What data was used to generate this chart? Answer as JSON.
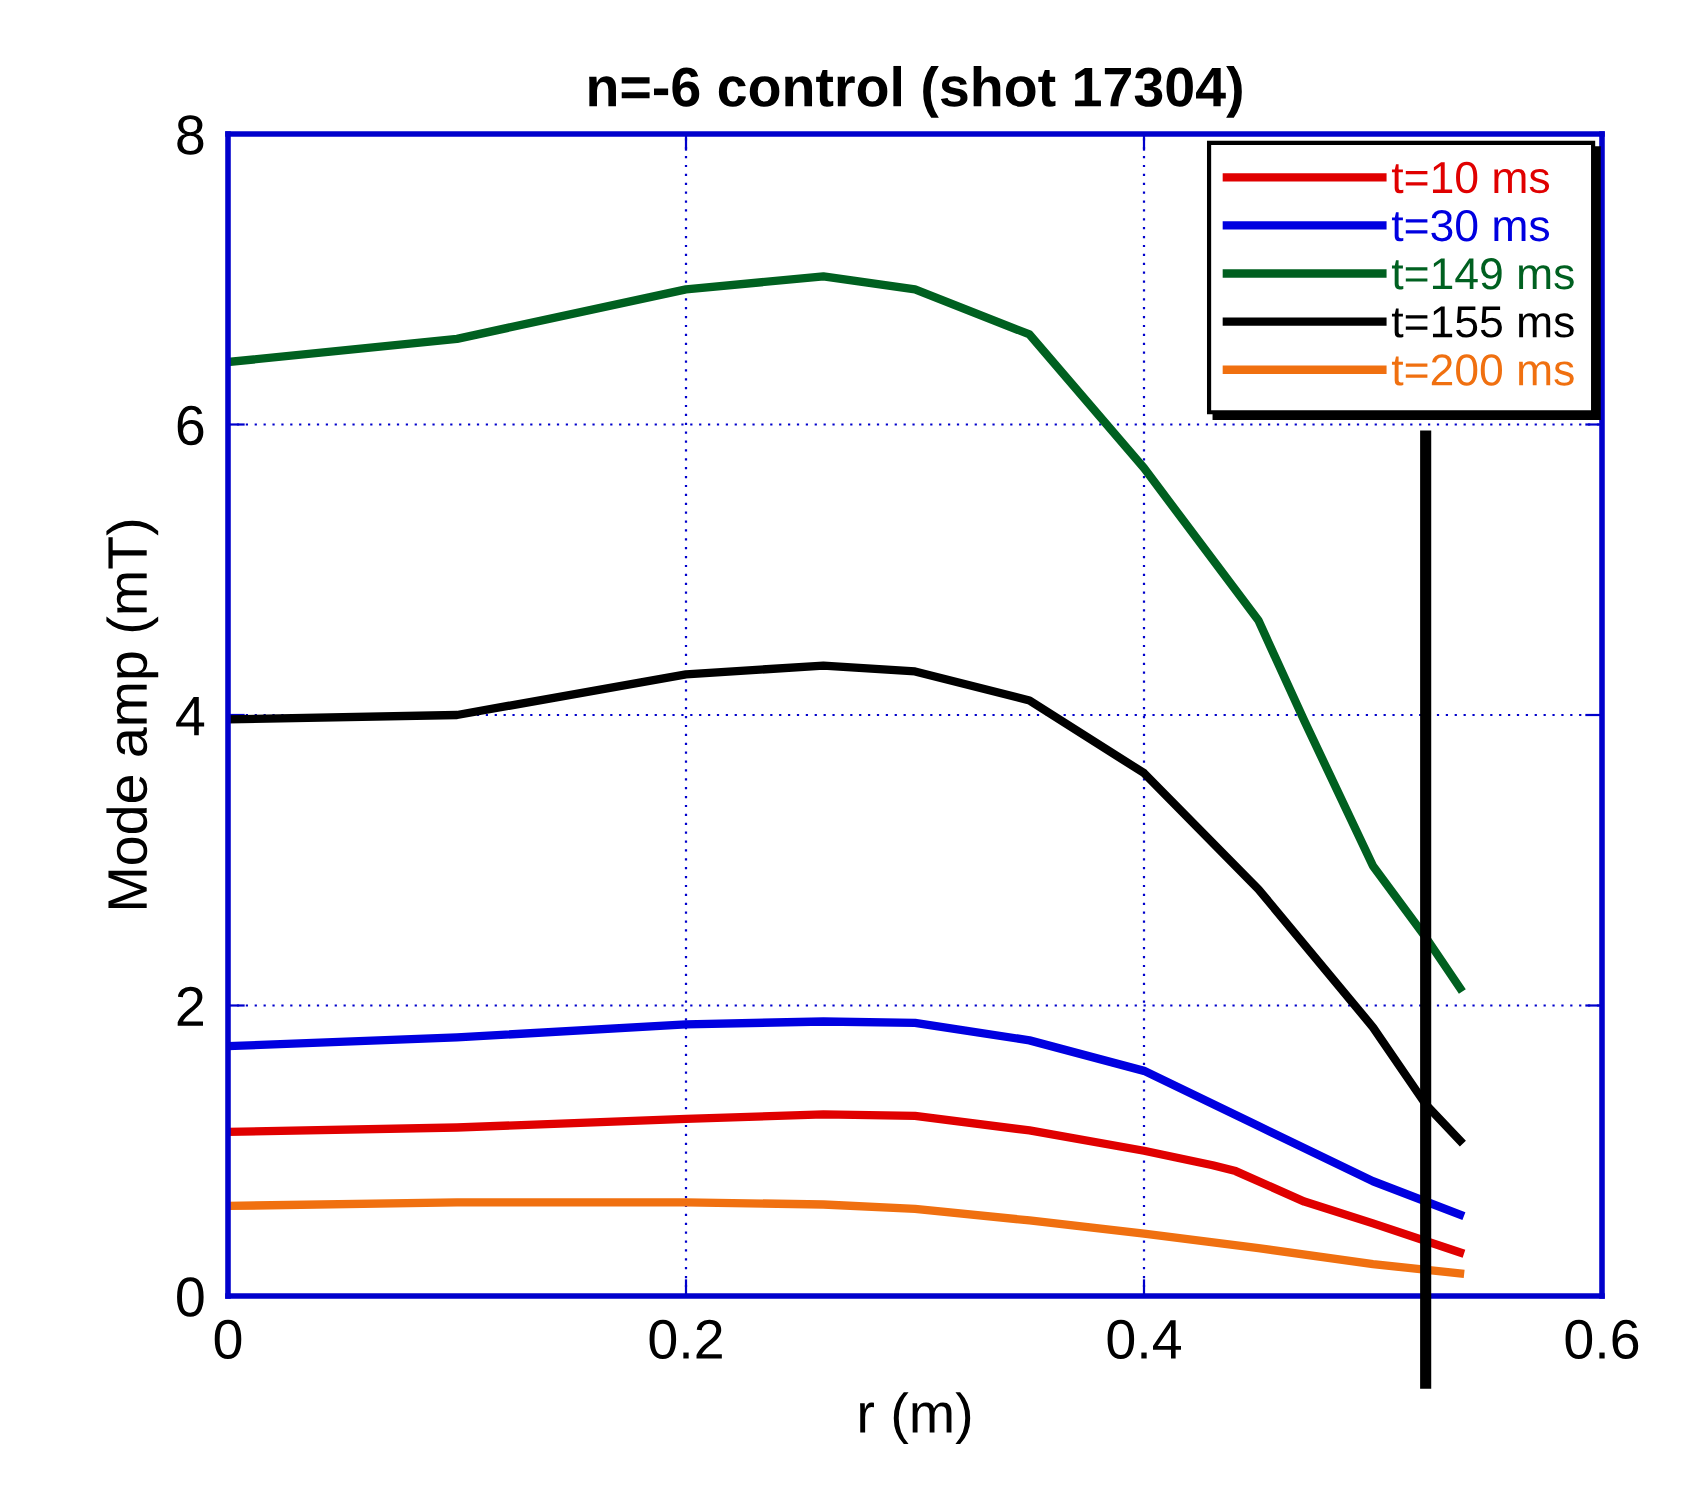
{
  "chart_data": {
    "type": "line",
    "title": "n=-6 control (shot 17304)",
    "xlabel": "r (m)",
    "ylabel": "Mode amp (mT)",
    "x": [
      0,
      0.1,
      0.2,
      0.26,
      0.3,
      0.35,
      0.4,
      0.45,
      0.5,
      0.538
    ],
    "series": [
      {
        "name": "t=10 ms",
        "color": "#e00000",
        "x": [
          0,
          0.1,
          0.2,
          0.26,
          0.3,
          0.35,
          0.4,
          0.43,
          0.44,
          0.47,
          0.5,
          0.538
        ],
        "values": [
          1.13,
          1.16,
          1.22,
          1.25,
          1.24,
          1.14,
          1.0,
          0.9,
          0.86,
          0.65,
          0.5,
          0.3
        ]
      },
      {
        "name": "t=30 ms",
        "color": "#0000e0",
        "values": [
          1.72,
          1.78,
          1.87,
          1.89,
          1.88,
          1.76,
          1.55,
          1.17,
          0.79,
          0.56
        ]
      },
      {
        "name": "t=149 ms",
        "color": "#006020",
        "x": [
          0,
          0.1,
          0.2,
          0.26,
          0.3,
          0.35,
          0.4,
          0.45,
          0.47,
          0.5,
          0.523,
          0.538
        ],
        "values": [
          6.43,
          6.59,
          6.93,
          7.02,
          6.93,
          6.62,
          5.7,
          4.65,
          3.96,
          2.96,
          2.47,
          2.12
        ]
      },
      {
        "name": "t=155 ms",
        "color": "#000000",
        "x": [
          0,
          0.1,
          0.2,
          0.26,
          0.3,
          0.35,
          0.4,
          0.45,
          0.5,
          0.523,
          0.538
        ],
        "values": [
          3.97,
          4.0,
          4.28,
          4.34,
          4.3,
          4.1,
          3.6,
          2.8,
          1.85,
          1.32,
          1.07
        ]
      },
      {
        "name": "t=200 ms",
        "color": "#f07010",
        "values": [
          0.62,
          0.645,
          0.645,
          0.63,
          0.6,
          0.52,
          0.43,
          0.33,
          0.22,
          0.155
        ]
      }
    ],
    "xlim": [
      0,
      0.6
    ],
    "ylim": [
      0,
      8
    ],
    "xticks": [
      0,
      0.2,
      0.4,
      0.6
    ],
    "yticks": [
      0,
      2,
      4,
      6,
      8
    ],
    "grid": true,
    "legend": "top right",
    "line_style": "solid",
    "ref_lines": [
      {
        "axis": "x",
        "value": 0.523,
        "color": "#000000"
      }
    ]
  }
}
